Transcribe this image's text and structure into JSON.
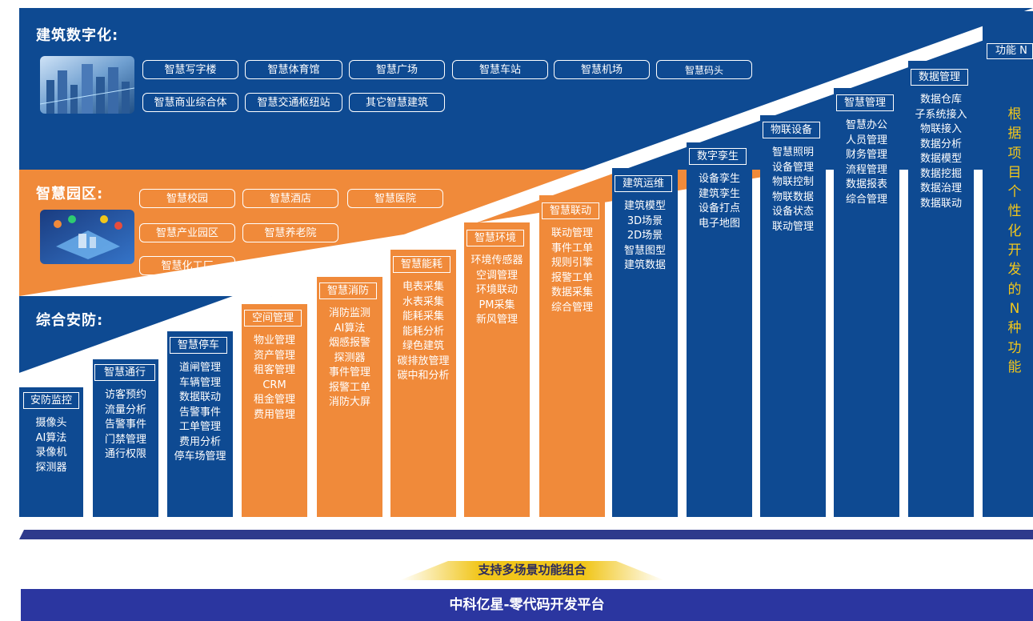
{
  "colors": {
    "blue": "#0e4a92",
    "orange": "#f08a3a",
    "gold": "#f1c61b",
    "navy": "#2b36a0",
    "base": "#2e3a8c"
  },
  "bands": {
    "digital": {
      "title": "建筑数字化:",
      "items": [
        "智慧写字楼",
        "智慧体育馆",
        "智慧广场",
        "智慧车站",
        "智慧机场",
        "智慧码头",
        "智慧商业综合体",
        "智慧交通枢纽站",
        "其它智慧建筑"
      ]
    },
    "park": {
      "title": "智慧园区:",
      "items": [
        "智慧校园",
        "智慧酒店",
        "智慧医院",
        "智慧产业园区",
        "智慧养老院",
        "智慧化工厂"
      ]
    },
    "security": {
      "title": "综合安防:"
    }
  },
  "columns": [
    {
      "title": "安防监控",
      "items": [
        "摄像头",
        "AI算法",
        "录像机",
        "探测器"
      ]
    },
    {
      "title": "智慧通行",
      "items": [
        "访客预约",
        "流量分析",
        "告警事件",
        "门禁管理",
        "通行权限"
      ]
    },
    {
      "title": "智慧停车",
      "items": [
        "道闸管理",
        "车辆管理",
        "数据联动",
        "告警事件",
        "工单管理",
        "费用分析",
        "停车场管理"
      ]
    },
    {
      "title": "空间管理",
      "items": [
        "物业管理",
        "资产管理",
        "租客管理",
        "CRM",
        "租金管理",
        "费用管理"
      ]
    },
    {
      "title": "智慧消防",
      "items": [
        "消防监测",
        "AI算法",
        "烟感报警",
        "探测器",
        "事件管理",
        "报警工单",
        "消防大屏"
      ]
    },
    {
      "title": "智慧能耗",
      "items": [
        "电表采集",
        "水表采集",
        "能耗采集",
        "能耗分析",
        "绿色建筑",
        "碳排放管理",
        "碳中和分析"
      ]
    },
    {
      "title": "智慧环境",
      "items": [
        "环境传感器",
        "空调管理",
        "环境联动",
        "PM采集",
        "新风管理"
      ]
    },
    {
      "title": "智慧联动",
      "items": [
        "联动管理",
        "事件工单",
        "规则引擎",
        "报警工单",
        "数据采集",
        "综合管理"
      ]
    },
    {
      "title": "建筑运维",
      "items": [
        "建筑模型",
        "3D场景",
        "2D场景",
        "智慧图型",
        "建筑数据"
      ]
    },
    {
      "title": "数字孪生",
      "items": [
        "设备孪生",
        "建筑孪生",
        "设备打点",
        "电子地图"
      ]
    },
    {
      "title": "物联设备",
      "items": [
        "智慧照明",
        "设备管理",
        "物联控制",
        "物联数据",
        "设备状态",
        "联动管理"
      ]
    },
    {
      "title": "智慧管理",
      "items": [
        "智慧办公",
        "人员管理",
        "财务管理",
        "流程管理",
        "数据报表",
        "综合管理"
      ]
    },
    {
      "title": "数据管理",
      "items": [
        "数据仓库",
        "子系统接入",
        "物联接入",
        "数据分析",
        "数据模型",
        "数据挖掘",
        "数据治理",
        "数据联动"
      ]
    }
  ],
  "n_function": {
    "title": "功能 N",
    "chars": [
      "根",
      "据",
      "项",
      "目",
      "个",
      "性",
      "化",
      "开",
      "发",
      "的",
      "N",
      "种",
      "功",
      "能"
    ]
  },
  "slogan": "支持多场景功能组合",
  "footer": "中科亿星-零代码开发平台"
}
